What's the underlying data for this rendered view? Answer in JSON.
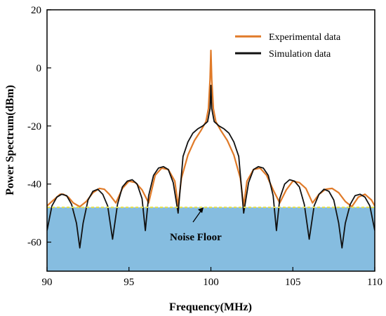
{
  "chart_data": {
    "type": "line",
    "xlabel": "Frequency(MHz)",
    "ylabel": "Power Spectrum(dBm)",
    "xlim": [
      90,
      110
    ],
    "ylim": [
      -70,
      20
    ],
    "x_ticks": [
      "90",
      "95",
      "100",
      "105",
      "110"
    ],
    "y_ticks": [
      "20",
      "0",
      "-20",
      "-40",
      "-60"
    ],
    "x_tick_values": [
      90,
      95,
      100,
      105,
      110
    ],
    "y_tick_values": [
      20,
      0,
      -20,
      -40,
      -60
    ],
    "legend_position": "top-right",
    "noise_floor": {
      "label": "Noise Floor",
      "level_dbm": -48
    },
    "colors": {
      "experimental": "#e07a28",
      "simulation": "#111111",
      "noise_fill": "#86bde0",
      "noise_line": "#e6e04a"
    },
    "series": [
      {
        "name": "Experimental data",
        "x": [
          90.0,
          90.4,
          90.8,
          91.0,
          91.3,
          91.6,
          92.0,
          92.4,
          92.8,
          93.2,
          93.5,
          93.8,
          94.2,
          94.6,
          95.0,
          95.4,
          95.8,
          96.2,
          96.6,
          97.0,
          97.4,
          97.8,
          98.0,
          98.2,
          98.6,
          99.0,
          99.4,
          99.7,
          99.85,
          99.95,
          100.0,
          100.05,
          100.15,
          100.3,
          100.6,
          101.0,
          101.4,
          101.8,
          102.0,
          102.2,
          102.6,
          103.0,
          103.4,
          103.8,
          104.2,
          104.6,
          105.0,
          105.4,
          105.8,
          106.2,
          106.6,
          107.0,
          107.4,
          107.8,
          108.2,
          108.6,
          109.0,
          109.4,
          109.8,
          110.0
        ],
        "y": [
          -47.5,
          -45.5,
          -43.5,
          -43.5,
          -44.5,
          -46.5,
          -47.8,
          -46.0,
          -43.0,
          -41.5,
          -41.8,
          -43.5,
          -46.5,
          -41.5,
          -39.0,
          -39.5,
          -42.0,
          -46.5,
          -37.0,
          -34.5,
          -35.0,
          -39.0,
          -47.5,
          -38.0,
          -30.0,
          -25.0,
          -21.5,
          -18.5,
          -14.0,
          -4.0,
          6.0,
          -4.0,
          -14.0,
          -18.5,
          -21.5,
          -25.0,
          -30.0,
          -38.0,
          -47.5,
          -39.0,
          -35.0,
          -34.5,
          -37.0,
          -42.0,
          -46.5,
          -42.0,
          -39.0,
          -39.5,
          -41.5,
          -46.5,
          -43.5,
          -41.8,
          -41.5,
          -43.0,
          -46.0,
          -47.8,
          -44.5,
          -43.5,
          -45.5,
          -47.5
        ]
      },
      {
        "name": "Simulation data",
        "x": [
          90.0,
          90.3,
          90.6,
          90.9,
          91.2,
          91.5,
          91.8,
          92.0,
          92.2,
          92.5,
          92.8,
          93.1,
          93.4,
          93.7,
          94.0,
          94.3,
          94.6,
          94.9,
          95.2,
          95.5,
          95.8,
          96.0,
          96.2,
          96.5,
          96.8,
          97.1,
          97.4,
          97.7,
          98.0,
          98.3,
          98.6,
          98.9,
          99.2,
          99.5,
          99.8,
          99.95,
          100.0,
          100.05,
          100.2,
          100.5,
          100.8,
          101.1,
          101.4,
          101.7,
          102.0,
          102.3,
          102.6,
          102.9,
          103.2,
          103.5,
          103.8,
          104.0,
          104.2,
          104.5,
          104.8,
          105.1,
          105.4,
          105.7,
          106.0,
          106.3,
          106.6,
          106.9,
          107.2,
          107.5,
          107.8,
          108.0,
          108.2,
          108.5,
          108.8,
          109.1,
          109.4,
          109.7,
          110.0
        ],
        "y": [
          -56.0,
          -47.5,
          -44.5,
          -43.5,
          -44.0,
          -47.0,
          -53.5,
          -62.0,
          -53.5,
          -45.5,
          -42.5,
          -41.8,
          -43.5,
          -47.5,
          -59.0,
          -47.0,
          -41.0,
          -39.0,
          -38.5,
          -40.0,
          -45.0,
          -56.0,
          -44.0,
          -37.0,
          -34.5,
          -34.0,
          -35.0,
          -39.5,
          -50.0,
          -30.5,
          -25.5,
          -22.5,
          -21.0,
          -20.0,
          -18.5,
          -14.0,
          -6.0,
          -14.0,
          -18.5,
          -20.0,
          -21.0,
          -22.5,
          -25.5,
          -30.5,
          -50.0,
          -39.5,
          -35.0,
          -34.0,
          -34.5,
          -37.0,
          -44.0,
          -56.0,
          -45.0,
          -40.0,
          -38.5,
          -39.0,
          -41.0,
          -47.0,
          -59.0,
          -47.5,
          -43.5,
          -41.8,
          -42.5,
          -45.5,
          -53.5,
          -62.0,
          -53.5,
          -47.0,
          -44.0,
          -43.5,
          -44.5,
          -47.5,
          -56.0
        ]
      }
    ]
  }
}
